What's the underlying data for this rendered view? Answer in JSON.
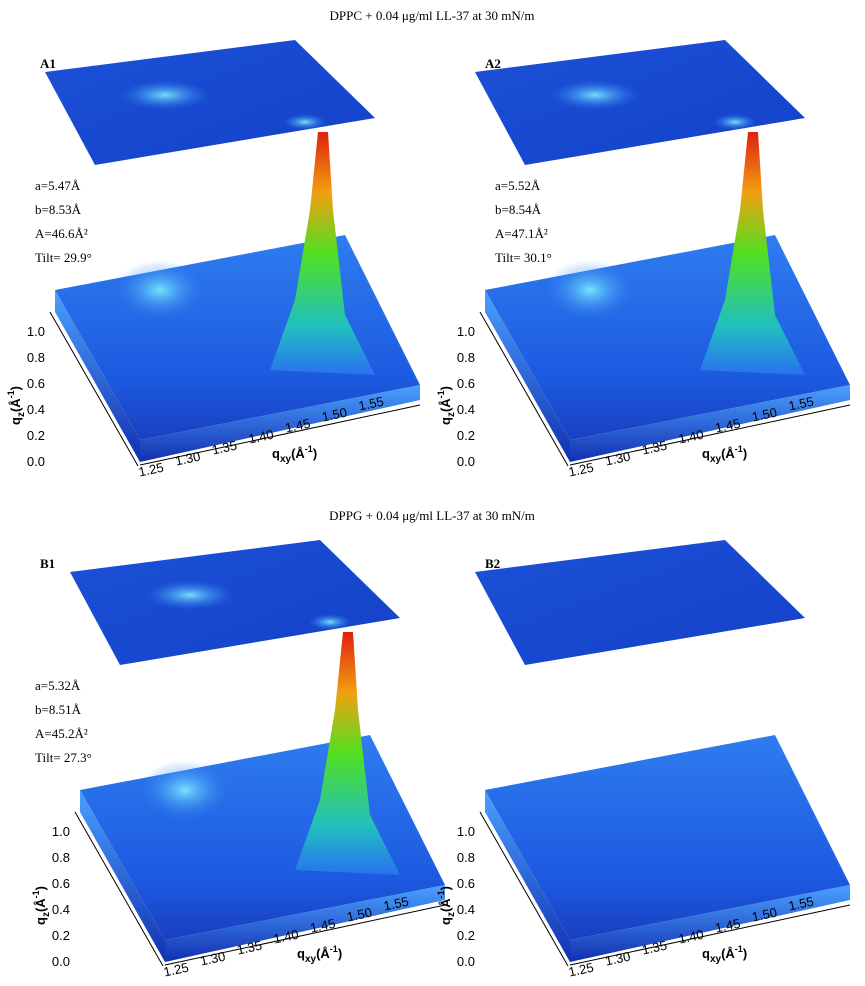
{
  "sections": [
    {
      "title": "DPPC + 0.04 μg/ml LL-37 at 30 mN/m",
      "panels": [
        {
          "label": "A1",
          "params": [
            "a=5.47Å",
            "b=8.53Å",
            "A=46.6Å²",
            "Tilt= 29.9°"
          ]
        },
        {
          "label": "A2",
          "params": [
            "a=5.52Å",
            "b=8.54Å",
            "A=47.1Å²",
            "Tilt= 30.1°"
          ]
        }
      ]
    },
    {
      "title": "DPPG + 0.04 μg/ml LL-37 at 30 mN/m",
      "panels": [
        {
          "label": "B1",
          "params": [
            "a=5.32Å",
            "b=8.51Å",
            "A=45.2Å²",
            "Tilt= 27.3°"
          ]
        },
        {
          "label": "B2",
          "params": []
        }
      ]
    }
  ],
  "axes": {
    "z_label": {
      "base": "q",
      "sub": "z",
      "unit": "(Å",
      "sup": "-1",
      "close": ")"
    },
    "xy_label": {
      "base": "q",
      "sub": "xy",
      "unit": "(Å",
      "sup": "-1",
      "close": ")"
    },
    "z_ticks": [
      "0.0",
      "0.2",
      "0.4",
      "0.6",
      "0.8",
      "1.0"
    ],
    "xy_ticks": [
      "1.25",
      "1.30",
      "1.35",
      "1.40",
      "1.45",
      "1.50",
      "1.55"
    ]
  }
}
